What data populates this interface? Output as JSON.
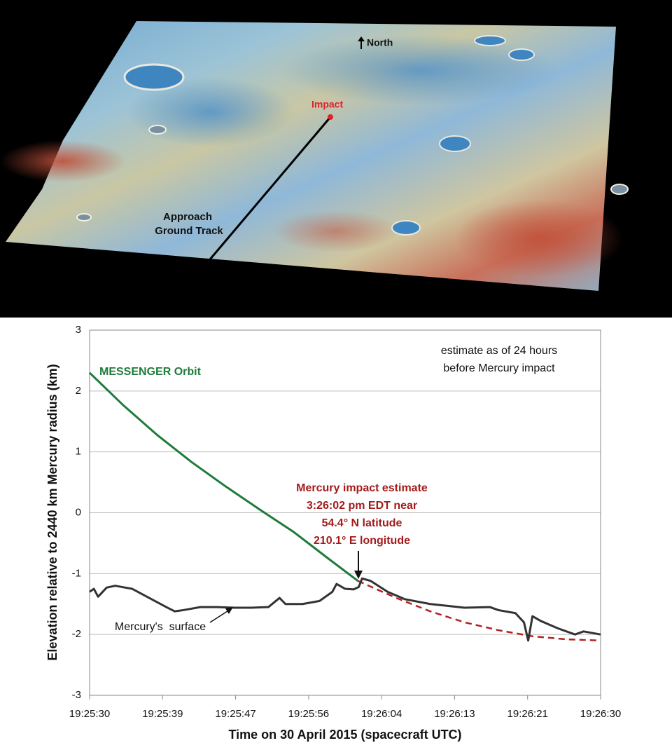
{
  "map": {
    "labels": {
      "north": "North",
      "impact": "Impact",
      "track": [
        "Approach",
        "Ground Track"
      ]
    }
  },
  "chart_data": {
    "type": "line",
    "x_label": "Time on 30 April 2015 (spacecraft UTC)",
    "y_label": "Elevation relative to 2440 km Mercury radius (km)",
    "xlim": [
      69930,
      69990
    ],
    "xticks": [
      {
        "value": 69930,
        "label": "19:25:30"
      },
      {
        "value": 69938.571,
        "label": "19:25:39"
      },
      {
        "value": 69947.143,
        "label": "19:25:47"
      },
      {
        "value": 69955.714,
        "label": "19:25:56"
      },
      {
        "value": 69964.286,
        "label": "19:26:04"
      },
      {
        "value": 69972.857,
        "label": "19:26:13"
      },
      {
        "value": 69981.429,
        "label": "19:26:21"
      },
      {
        "value": 69990,
        "label": "19:26:30"
      }
    ],
    "ylim": [
      -3,
      3
    ],
    "yticks": [
      -3,
      -2,
      -1,
      0,
      1,
      2,
      3
    ],
    "grid": true,
    "series": [
      {
        "name": "MESSENGER Orbit",
        "color": "#1e7b3a",
        "style": "solid",
        "x": [
          69930,
          69934,
          69938,
          69942,
          69946,
          69950,
          69954,
          69958,
          69961.5
        ],
        "values": [
          2.3,
          1.76,
          1.27,
          0.83,
          0.43,
          0.05,
          -0.32,
          -0.75,
          -1.12
        ]
      },
      {
        "color": "#b22222",
        "style": "dashed",
        "x": [
          69961.5,
          69966,
          69970,
          69974,
          69978,
          69982,
          69986,
          69990
        ],
        "values": [
          -1.12,
          -1.4,
          -1.62,
          -1.8,
          -1.93,
          -2.03,
          -2.08,
          -2.1
        ]
      },
      {
        "name": "Mercury's  surface",
        "color": "#333333",
        "style": "solid",
        "x": [
          69930,
          69930.5,
          69931,
          69932,
          69933,
          69935,
          69937,
          69939,
          69940,
          69941,
          69943,
          69945,
          69947,
          69949,
          69951,
          69952.3,
          69953,
          69955,
          69957,
          69958.5,
          69959,
          69960,
          69961,
          69961.6,
          69962,
          69963,
          69965,
          69967,
          69970,
          69974,
          69977,
          69978,
          69980,
          69981,
          69981.5,
          69982,
          69983,
          69985,
          69987,
          69988,
          69990
        ],
        "values": [
          -1.3,
          -1.25,
          -1.38,
          -1.23,
          -1.2,
          -1.25,
          -1.4,
          -1.55,
          -1.62,
          -1.6,
          -1.55,
          -1.55,
          -1.56,
          -1.56,
          -1.55,
          -1.4,
          -1.5,
          -1.5,
          -1.45,
          -1.3,
          -1.17,
          -1.25,
          -1.26,
          -1.22,
          -1.08,
          -1.12,
          -1.3,
          -1.42,
          -1.5,
          -1.56,
          -1.55,
          -1.6,
          -1.65,
          -1.8,
          -2.1,
          -1.7,
          -1.78,
          -1.9,
          -2.0,
          -1.95,
          -2.0
        ]
      }
    ],
    "annotations": {
      "estimate": [
        "estimate as of 24 hours",
        "before Mercury impact"
      ],
      "impact": [
        "Mercury impact estimate",
        "3:26:02 pm EDT near",
        "54.4° N latitude",
        "210.1° E longitude"
      ]
    }
  }
}
